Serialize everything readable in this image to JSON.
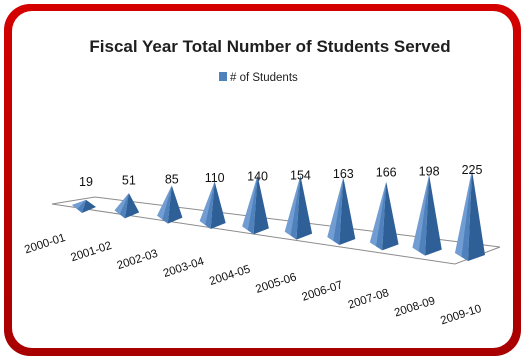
{
  "colors": {
    "frame": "#c00000",
    "panel": "#ffffff",
    "series": "#4f81bd",
    "series_dark": "#2e5f96",
    "series_light": "#8fb4e3"
  },
  "chart_data": {
    "type": "bar",
    "style": "3d-pyramid",
    "title": "Fiscal Year Total Number of Students Served",
    "legend": {
      "position": "top",
      "entries": [
        "# of Students"
      ]
    },
    "categories": [
      "2000-01",
      "2001-02",
      "2002-03",
      "2003-04",
      "2004-05",
      "2005-06",
      "2006-07",
      "2007-08",
      "2008-09",
      "2009-10"
    ],
    "series": [
      {
        "name": "# of Students",
        "values": [
          19,
          51,
          85,
          110,
          140,
          154,
          163,
          166,
          198,
          225
        ]
      }
    ],
    "grid": false
  }
}
